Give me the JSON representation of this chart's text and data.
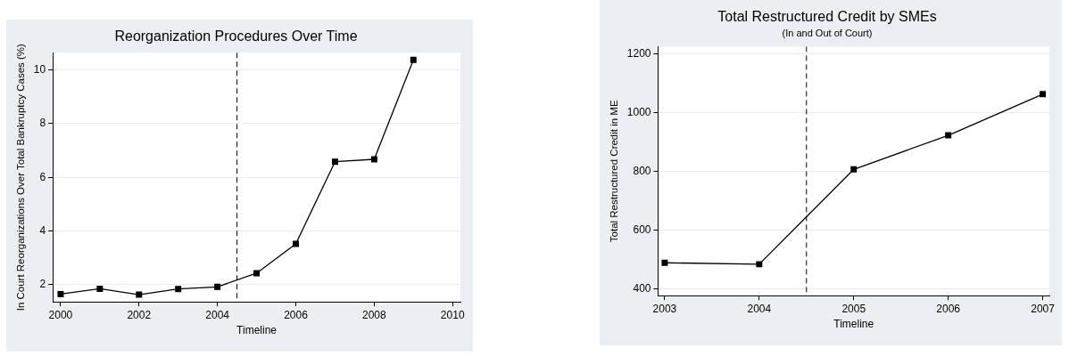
{
  "chart_data": [
    {
      "type": "line",
      "title": "Reorganization Procedures Over Time",
      "xlabel": "Timeline",
      "ylabel": "In Court Reorganizations Over Total Bankruptcy Cases (%)",
      "x": [
        2000,
        2001,
        2002,
        2003,
        2004,
        2005,
        2006,
        2007,
        2008,
        2009
      ],
      "values": [
        1.65,
        1.85,
        1.63,
        1.84,
        1.92,
        2.43,
        3.52,
        6.58,
        6.67,
        10.37
      ],
      "color": "#000000",
      "xlim": [
        1999.8,
        2010.2
      ],
      "ylim": [
        1.36,
        10.64
      ],
      "xticks": [
        2000,
        2002,
        2004,
        2006,
        2008,
        2010
      ],
      "yticks": [
        2,
        4,
        6,
        8,
        10
      ],
      "grid": "y",
      "marker": "square",
      "line_style": "solid",
      "ref_lines": [
        {
          "axis": "x",
          "value": 2004.5,
          "line_style": "dashed",
          "color": "#000000"
        }
      ]
    },
    {
      "type": "line",
      "title": "Total Restructured Credit by SMEs",
      "subtitle": "(In and Out of Court)",
      "xlabel": "Timeline",
      "ylabel": "Total Restructured Credit in ME",
      "x": [
        2003,
        2004,
        2005,
        2006,
        2007
      ],
      "values": [
        488,
        483,
        806,
        922,
        1062
      ],
      "color": "#000000",
      "xlim": [
        2002.93,
        2007.07
      ],
      "ylim": [
        376,
        1224
      ],
      "xticks": [
        2003,
        2004,
        2005,
        2006,
        2007
      ],
      "yticks": [
        400,
        600,
        800,
        1000,
        1200
      ],
      "grid": "y",
      "marker": "square",
      "line_style": "solid",
      "ref_lines": [
        {
          "axis": "x",
          "value": 2004.5,
          "line_style": "dashed",
          "color": "#000000"
        }
      ]
    }
  ]
}
